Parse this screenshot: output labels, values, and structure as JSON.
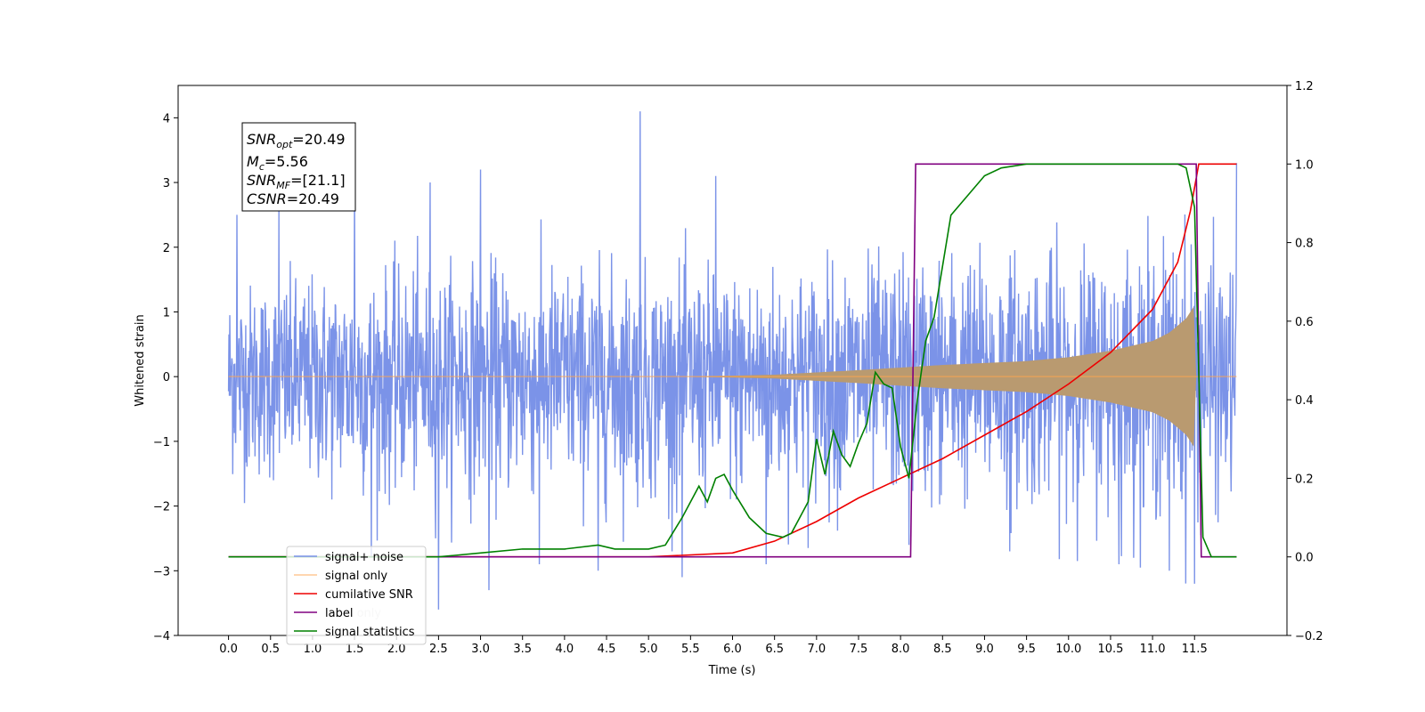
{
  "chart_data": {
    "type": "line",
    "xlabel": "Time (s)",
    "ylabel": "Whitened strain",
    "ylabel_right": "",
    "xlim": [
      -0.6,
      12.6
    ],
    "ylim": [
      -4,
      4.5
    ],
    "ylim_right": [
      -0.2,
      1.2
    ],
    "x_ticks": [
      "0.0",
      "0.5",
      "1.0",
      "1.5",
      "2.0",
      "2.5",
      "3.0",
      "3.5",
      "4.0",
      "4.5",
      "5.0",
      "5.5",
      "6.0",
      "6.5",
      "7.0",
      "7.5",
      "8.0",
      "8.5",
      "9.0",
      "9.5",
      "10.0",
      "10.5",
      "11.0",
      "11.5"
    ],
    "y_ticks": [
      "4",
      "3",
      "2",
      "1",
      "0",
      "−1",
      "−2",
      "−3",
      "−4"
    ],
    "y_ticks_right": [
      "1.2",
      "1.0",
      "0.8",
      "0.6",
      "0.4",
      "0.2",
      "0.0",
      "−0.2"
    ],
    "grid": false,
    "legend_position": "lower-left",
    "annotation": {
      "snr_opt": {
        "base": "SNR",
        "sub": "opt",
        "value": "=20.49"
      },
      "mc": {
        "base": "M",
        "sub": "c",
        "value": "=5.56"
      },
      "snr_mf": {
        "base": "SNR",
        "sub": "MF",
        "value": "=[21.1]"
      },
      "csnr": {
        "base": "CSNR",
        "sub": "",
        "value": "=20.49"
      }
    },
    "series": [
      {
        "name": "signal+ noise",
        "axis": "left",
        "color": "#7891e8",
        "x_range": [
          0.0,
          12.0
        ],
        "envelope_upper": [
          [
            0.0,
            1.5
          ],
          [
            1.0,
            1.6
          ],
          [
            2.0,
            1.7
          ],
          [
            3.0,
            1.8
          ],
          [
            4.0,
            1.8
          ],
          [
            5.0,
            1.7
          ],
          [
            6.0,
            1.7
          ],
          [
            7.0,
            1.8
          ],
          [
            8.0,
            1.9
          ],
          [
            9.0,
            2.0
          ],
          [
            10.0,
            2.0
          ],
          [
            11.0,
            2.1
          ],
          [
            11.4,
            2.3
          ],
          [
            12.0,
            1.7
          ]
        ],
        "envelope_lower": [
          [
            0.0,
            -1.6
          ],
          [
            1.0,
            -1.8
          ],
          [
            2.0,
            -1.9
          ],
          [
            3.0,
            -1.9
          ],
          [
            4.0,
            -1.9
          ],
          [
            5.0,
            -2.0
          ],
          [
            6.0,
            -2.0
          ],
          [
            7.0,
            -2.0
          ],
          [
            8.0,
            -2.0
          ],
          [
            9.0,
            -2.0
          ],
          [
            10.0,
            -2.1
          ],
          [
            11.0,
            -2.2
          ],
          [
            11.4,
            -2.4
          ],
          [
            12.0,
            -1.9
          ]
        ],
        "spikes": [
          [
            0.1,
            2.5
          ],
          [
            0.6,
            2.6
          ],
          [
            1.5,
            3.1
          ],
          [
            2.4,
            3.0
          ],
          [
            3.0,
            3.2
          ],
          [
            4.9,
            4.1
          ],
          [
            5.8,
            3.1
          ],
          [
            2.5,
            -3.6
          ],
          [
            3.1,
            -3.3
          ],
          [
            5.4,
            -3.1
          ],
          [
            8.1,
            -2.6
          ],
          [
            11.5,
            -3.2
          ],
          [
            12.0,
            3.3
          ],
          [
            1.7,
            -2.8
          ],
          [
            3.7,
            -2.9
          ],
          [
            4.4,
            -3.0
          ],
          [
            6.4,
            -2.9
          ],
          [
            9.3,
            -2.7
          ],
          [
            10.6,
            -2.9
          ],
          [
            11.2,
            -3.0
          ]
        ]
      },
      {
        "name": "signal only",
        "axis": "left",
        "color": "#ffa54f",
        "fill_color": "#b99a70",
        "x_range": [
          0.0,
          12.0
        ],
        "envelope": [
          [
            0.0,
            0.0
          ],
          [
            5.5,
            0.0
          ],
          [
            6.5,
            0.03
          ],
          [
            7.5,
            0.1
          ],
          [
            8.5,
            0.18
          ],
          [
            9.5,
            0.24
          ],
          [
            10.0,
            0.3
          ],
          [
            10.5,
            0.4
          ],
          [
            11.0,
            0.55
          ],
          [
            11.2,
            0.68
          ],
          [
            11.4,
            0.9
          ],
          [
            11.5,
            1.1
          ],
          [
            11.52,
            0.0
          ],
          [
            12.0,
            0.0
          ]
        ]
      },
      {
        "name": "cumilative SNR",
        "axis": "right",
        "color": "#ee0000",
        "points": [
          [
            0.0,
            0.0
          ],
          [
            5.0,
            0.0
          ],
          [
            6.0,
            0.01
          ],
          [
            6.5,
            0.04
          ],
          [
            7.0,
            0.09
          ],
          [
            7.5,
            0.15
          ],
          [
            8.0,
            0.2
          ],
          [
            8.5,
            0.25
          ],
          [
            9.0,
            0.31
          ],
          [
            9.5,
            0.37
          ],
          [
            10.0,
            0.44
          ],
          [
            10.5,
            0.52
          ],
          [
            11.0,
            0.63
          ],
          [
            11.3,
            0.75
          ],
          [
            11.45,
            0.88
          ],
          [
            11.55,
            1.0
          ],
          [
            12.0,
            1.0
          ]
        ]
      },
      {
        "name": "label",
        "axis": "right",
        "color": "#800080",
        "points": [
          [
            0.0,
            0.0
          ],
          [
            8.12,
            0.0
          ],
          [
            8.18,
            1.0
          ],
          [
            11.52,
            1.0
          ],
          [
            11.58,
            0.0
          ],
          [
            12.0,
            0.0
          ]
        ]
      },
      {
        "name": "label only",
        "axis": "right",
        "color": "#800080",
        "hidden": true,
        "points": []
      },
      {
        "name": "signal statistics",
        "axis": "right",
        "color": "#008000",
        "points": [
          [
            0.0,
            0.0
          ],
          [
            2.5,
            0.0
          ],
          [
            3.0,
            0.01
          ],
          [
            3.5,
            0.02
          ],
          [
            4.0,
            0.02
          ],
          [
            4.4,
            0.03
          ],
          [
            4.6,
            0.02
          ],
          [
            5.0,
            0.02
          ],
          [
            5.2,
            0.03
          ],
          [
            5.4,
            0.1
          ],
          [
            5.6,
            0.18
          ],
          [
            5.7,
            0.14
          ],
          [
            5.8,
            0.2
          ],
          [
            5.9,
            0.21
          ],
          [
            6.0,
            0.17
          ],
          [
            6.2,
            0.1
          ],
          [
            6.4,
            0.06
          ],
          [
            6.6,
            0.05
          ],
          [
            6.7,
            0.06
          ],
          [
            6.8,
            0.1
          ],
          [
            6.9,
            0.14
          ],
          [
            7.0,
            0.3
          ],
          [
            7.1,
            0.21
          ],
          [
            7.2,
            0.32
          ],
          [
            7.3,
            0.26
          ],
          [
            7.4,
            0.23
          ],
          [
            7.5,
            0.29
          ],
          [
            7.6,
            0.34
          ],
          [
            7.7,
            0.47
          ],
          [
            7.8,
            0.44
          ],
          [
            7.9,
            0.43
          ],
          [
            8.0,
            0.28
          ],
          [
            8.1,
            0.2
          ],
          [
            8.2,
            0.4
          ],
          [
            8.3,
            0.55
          ],
          [
            8.4,
            0.61
          ],
          [
            8.5,
            0.74
          ],
          [
            8.6,
            0.87
          ],
          [
            8.8,
            0.92
          ],
          [
            9.0,
            0.97
          ],
          [
            9.2,
            0.99
          ],
          [
            9.5,
            1.0
          ],
          [
            11.3,
            1.0
          ],
          [
            11.4,
            0.99
          ],
          [
            11.5,
            0.89
          ],
          [
            11.6,
            0.05
          ],
          [
            11.7,
            0.0
          ],
          [
            12.0,
            0.0
          ]
        ]
      }
    ]
  }
}
